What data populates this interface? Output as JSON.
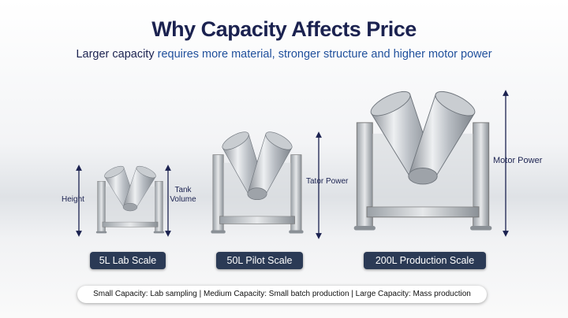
{
  "header": {
    "title": "Why Capacity Affects Price",
    "subtitle": [
      "Larger capacity",
      "requires more material, stronger structure and higher motor power"
    ]
  },
  "machines": [
    {
      "label": "5L Lab Scale",
      "annotations": [
        "Height",
        "Tank Volume"
      ]
    },
    {
      "label": "50L Pilot Scale",
      "annotations": [
        "Tator Power"
      ]
    },
    {
      "label": "200L Production Scale",
      "annotations": [
        "Motor Power"
      ]
    }
  ],
  "footer": "Small Capacity: Lab sampling | Medium Capacity: Small batch production | Large Capacity: Mass production"
}
